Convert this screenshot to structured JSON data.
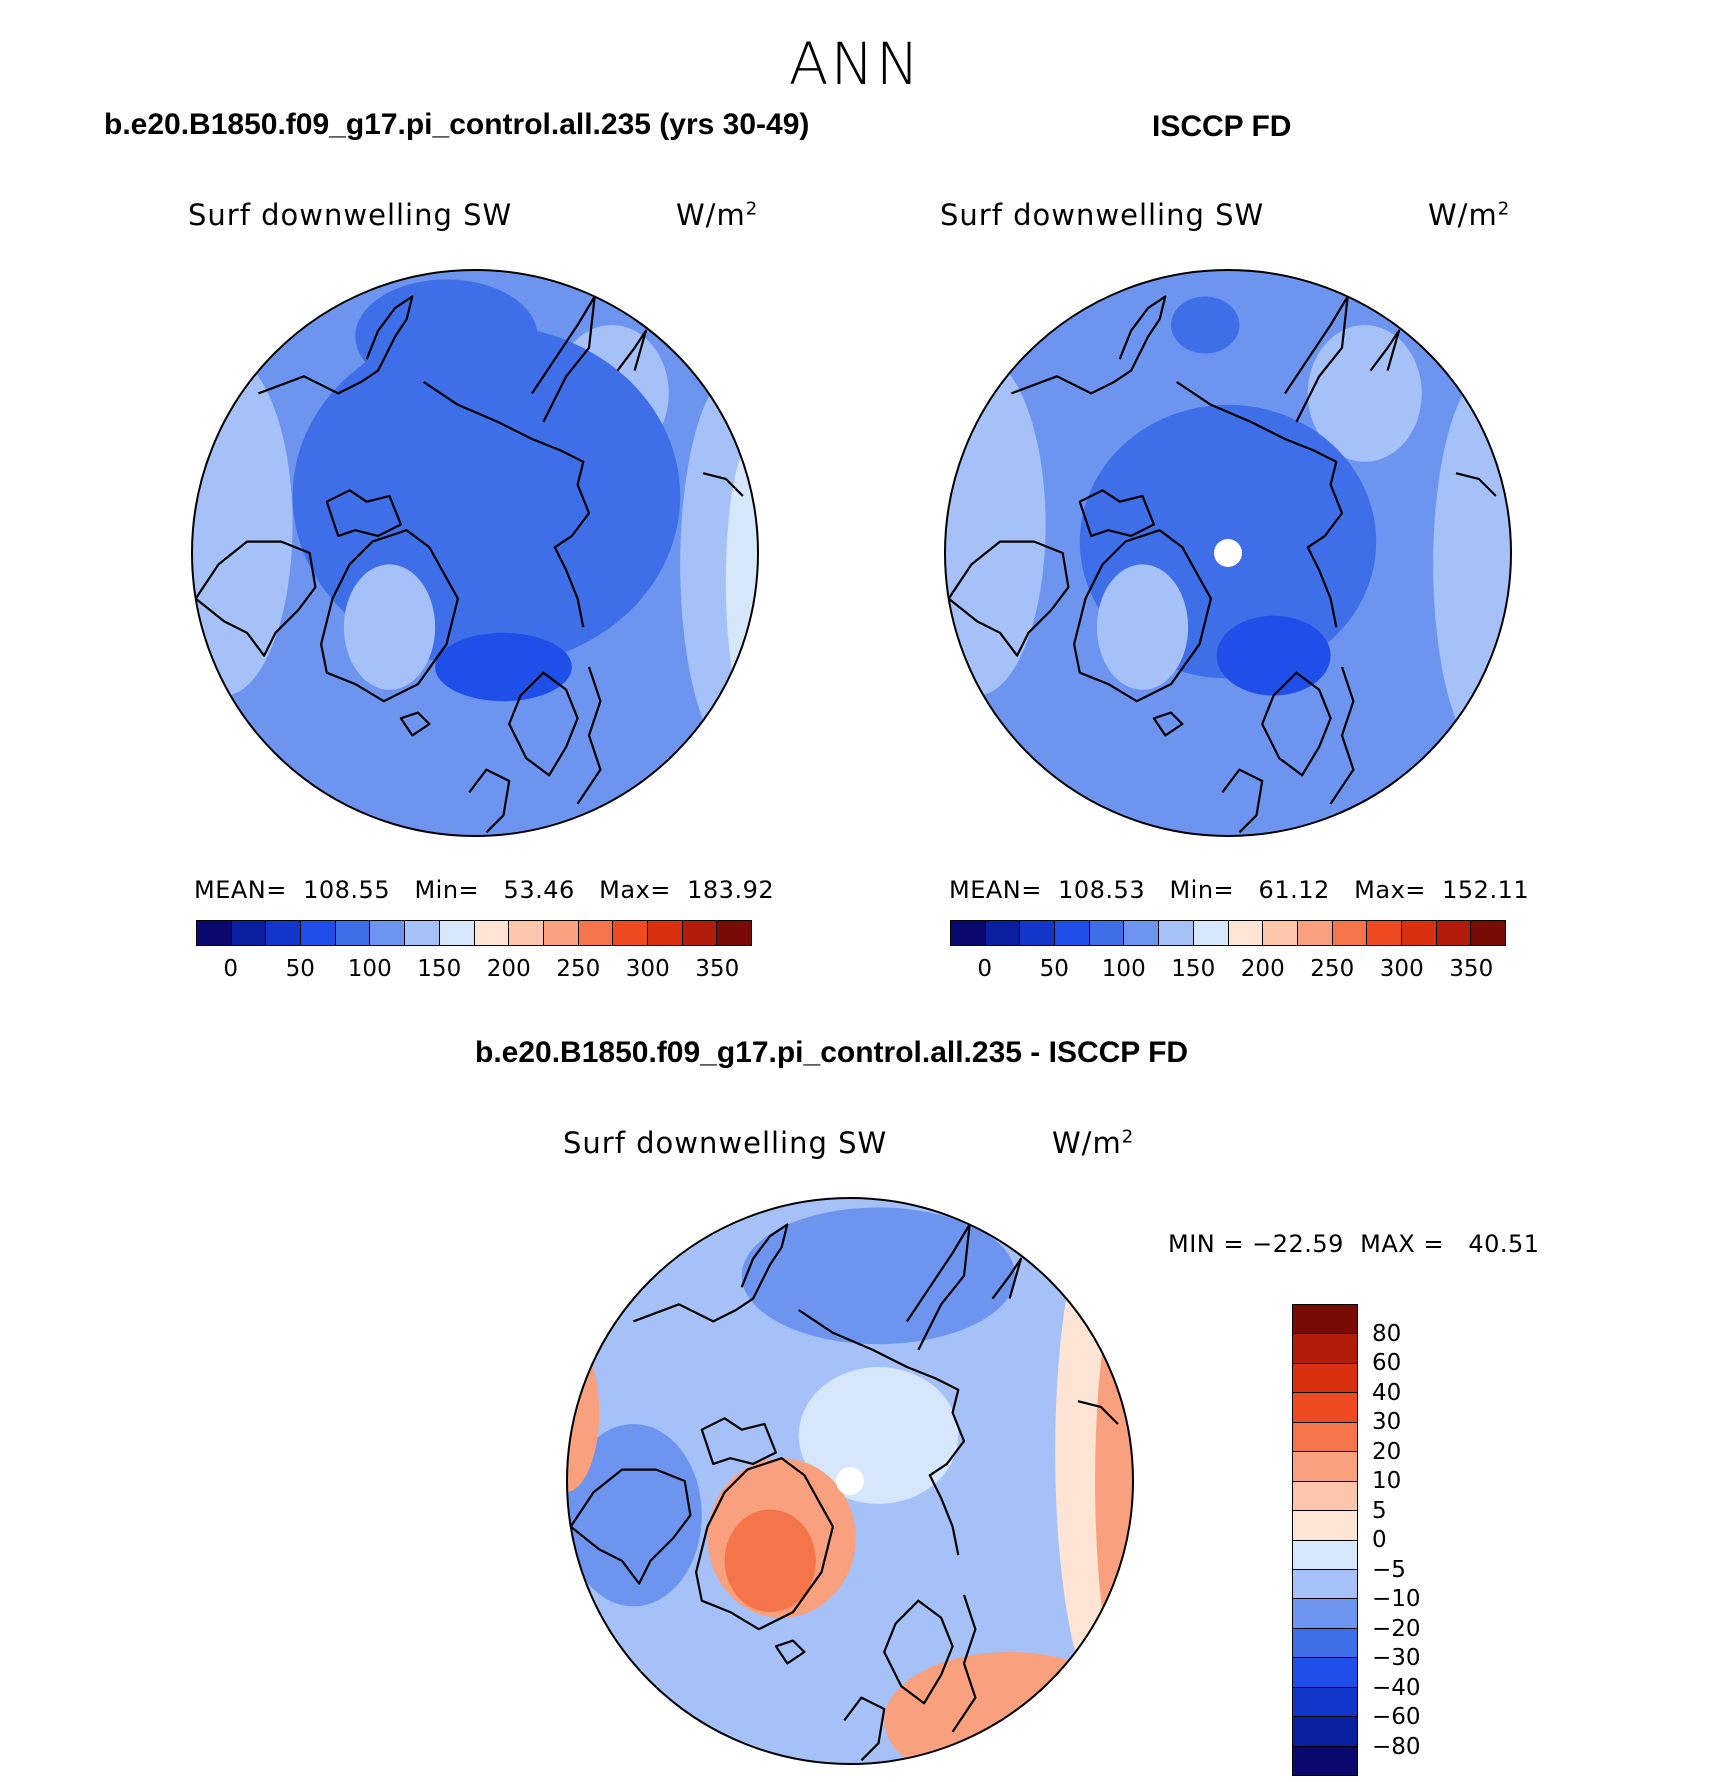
{
  "figure": {
    "title": "ANN"
  },
  "panels": [
    {
      "id": "model",
      "title": "b.e20.B1850.f09_g17.pi_control.all.235 (yrs 30-49)",
      "variable": "Surf downwelling SW",
      "units": "W/m",
      "units_exp": "2",
      "stats": "MEAN=  108.55   Min=   53.46   Max=  183.92"
    },
    {
      "id": "obs",
      "title": "ISCCP FD",
      "variable": "Surf downwelling SW",
      "units": "W/m",
      "units_exp": "2",
      "stats": "MEAN=  108.53   Min=   61.12   Max=  152.11"
    },
    {
      "id": "diff",
      "title": "b.e20.B1850.f09_g17.pi_control.all.235 - ISCCP FD",
      "variable": "Surf downwelling SW",
      "units": "W/m",
      "units_exp": "2",
      "stats": "MIN = −22.59  MAX =   40.51"
    }
  ],
  "colorbar_abs": {
    "colors": [
      "#08086e",
      "#0a1fa0",
      "#1236c9",
      "#1f4fe8",
      "#3f6fe8",
      "#6d95f0",
      "#a5c1f7",
      "#d6e6fb",
      "#fde4d4",
      "#fbc6ab",
      "#f9a07e",
      "#f5754a",
      "#f04a22",
      "#d9300f",
      "#b11d0a",
      "#7a0a05"
    ],
    "tick_labels": [
      "0",
      "50",
      "100",
      "150",
      "200",
      "250",
      "300",
      "350"
    ]
  },
  "colorbar_diff": {
    "colors": [
      "#7a0a05",
      "#b11d0a",
      "#d9300f",
      "#f04a22",
      "#f5754a",
      "#f9a07e",
      "#fbc6ab",
      "#fde4d4",
      "#d6e6fb",
      "#a5c1f7",
      "#6d95f0",
      "#3f6fe8",
      "#1f4fe8",
      "#1236c9",
      "#0a1fa0",
      "#08086e"
    ],
    "tick_labels": [
      "80",
      "60",
      "40",
      "30",
      "20",
      "10",
      "5",
      "0",
      "−5",
      "−10",
      "−20",
      "−30",
      "−40",
      "−60",
      "−80"
    ]
  },
  "map_colors": {
    "abs_background": "#6d95f0",
    "abs_mid": "#3f6fe8",
    "abs_deep": "#1f4fe8",
    "abs_light": "#a5c1f7",
    "abs_lightest": "#d6e6fb",
    "diff_background": "#a5c1f7",
    "diff_pos": "#f9a07e",
    "diff_pos_strong": "#f5754a",
    "diff_neutral": "#d6e6fb",
    "diff_neg": "#6d95f0",
    "diff_pale_pos": "#fde4d4"
  }
}
